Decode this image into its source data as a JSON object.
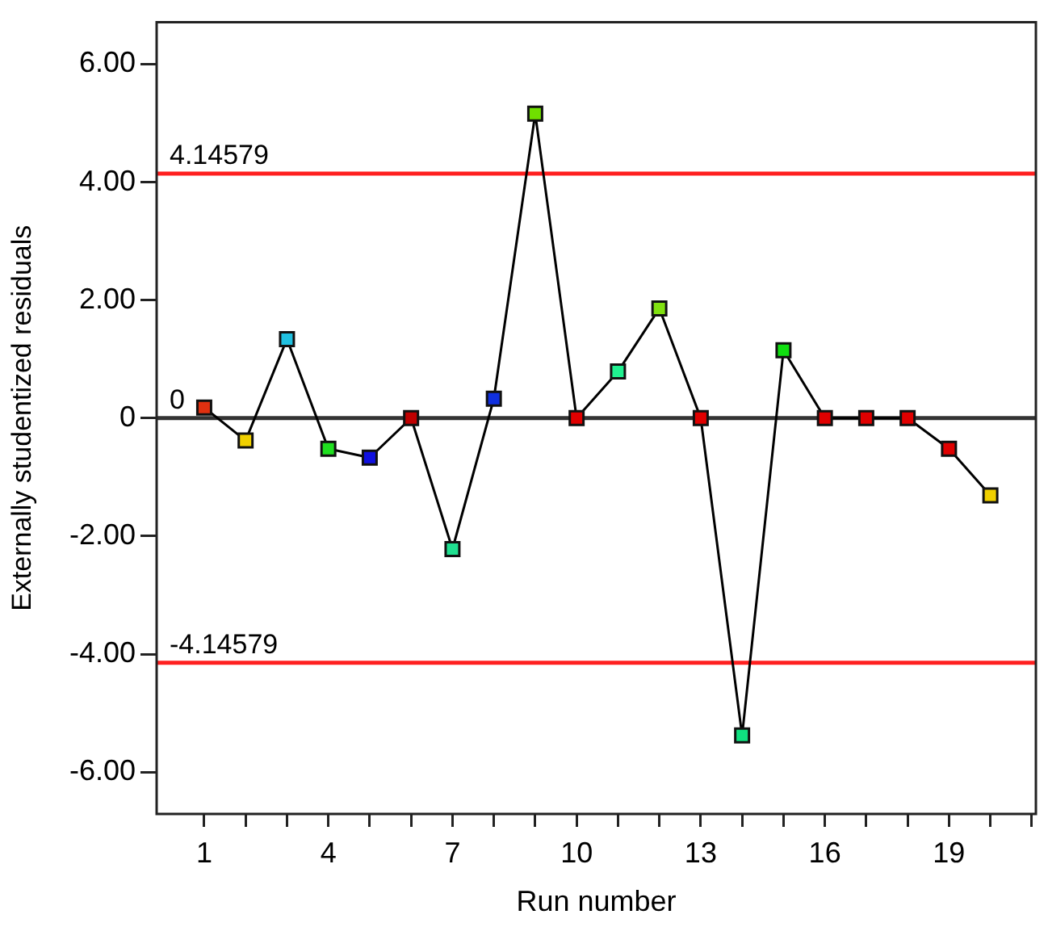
{
  "chart_data": {
    "type": "line",
    "xlabel": "Run number",
    "ylabel": "Externally studentized residuals",
    "x": [
      1,
      2,
      3,
      4,
      5,
      6,
      7,
      8,
      9,
      10,
      11,
      12,
      13,
      14,
      15,
      16,
      17,
      18,
      19,
      20
    ],
    "values": [
      0.18,
      -0.38,
      1.34,
      -0.52,
      -0.67,
      0,
      -2.22,
      0.33,
      5.16,
      0,
      0.79,
      1.86,
      0,
      -5.38,
      1.15,
      0,
      0,
      0,
      -0.52,
      -1.31
    ],
    "color": "#000000",
    "colors": [
      "#e03010",
      "#f0d000",
      "#20c0e0",
      "#20e020",
      "#1010e0",
      "#c00000",
      "#20e090",
      "#1030e0",
      "#70e000",
      "#e00000",
      "#20f090",
      "#80e010",
      "#e00000",
      "#10e080",
      "#10e010",
      "#e00000",
      "#e00000",
      "#e00000",
      "#e00000",
      "#f0d000"
    ],
    "marker": "square",
    "line_style": "solid",
    "grid": false,
    "legend": false,
    "xlim": [
      -0.15,
      21.1
    ],
    "ylim": [
      -6.71,
      6.71
    ],
    "xticks": [
      1,
      {
        "value": 2,
        "label": null
      },
      {
        "value": 3,
        "label": null
      },
      4,
      {
        "value": 5,
        "label": null
      },
      {
        "value": 6,
        "label": null
      },
      7,
      {
        "value": 8,
        "label": null
      },
      {
        "value": 9,
        "label": null
      },
      10,
      {
        "value": 11,
        "label": null
      },
      {
        "value": 12,
        "label": null
      },
      13,
      {
        "value": 14,
        "label": null
      },
      {
        "value": 15,
        "label": null
      },
      16,
      {
        "value": 17,
        "label": null
      },
      {
        "value": 18,
        "label": null
      },
      19,
      {
        "value": 20,
        "label": null
      },
      {
        "value": 21,
        "label": null
      }
    ],
    "yticks": [
      {
        "value": -6,
        "label": "-6.00"
      },
      {
        "value": -4,
        "label": "-4.00"
      },
      {
        "value": -2,
        "label": "-2.00"
      },
      0,
      {
        "value": 2,
        "label": "2.00"
      },
      {
        "value": 4,
        "label": "4.00"
      },
      {
        "value": 6,
        "label": "6.00"
      }
    ],
    "ref_lines": [
      {
        "axis": "y",
        "value": 4.14579,
        "label": "4.14579",
        "color": "#ff2020"
      },
      {
        "axis": "y",
        "value": 0,
        "label": "0",
        "color": "#333333"
      },
      {
        "axis": "y",
        "value": -4.14579,
        "label": "-4.14579",
        "color": "#ff2020"
      }
    ]
  }
}
